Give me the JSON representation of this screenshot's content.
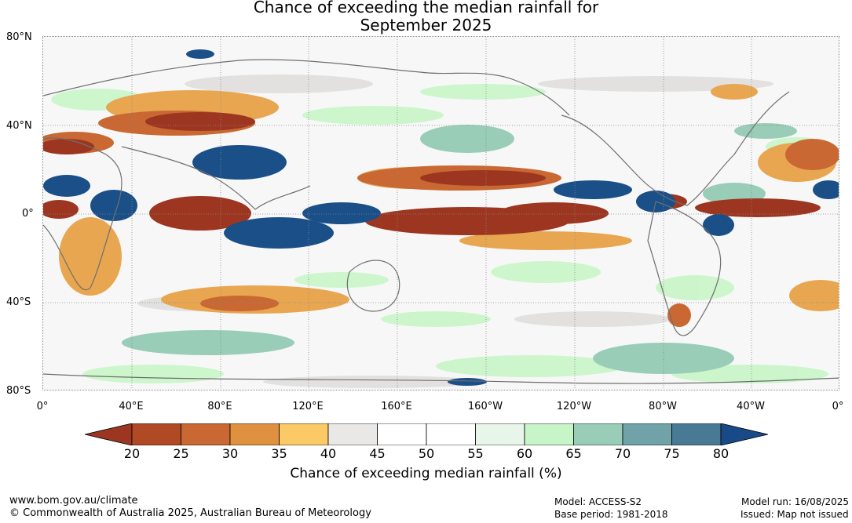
{
  "title": {
    "line1": "Chance of exceeding the median rainfall for",
    "line2": "September 2025"
  },
  "map": {
    "latitude_labels": [
      "80°N",
      "40°N",
      "0°",
      "40°S",
      "80°S"
    ],
    "longitude_labels": [
      "0°",
      "40°E",
      "80°E",
      "120°E",
      "160°E",
      "160°W",
      "120°W",
      "80°W",
      "40°W",
      "0°"
    ],
    "colors": {
      "dry_dark": "#9c3621",
      "dry_mid": "#c96832",
      "dry_light": "#e8a650",
      "neutral_gray": "#e9e8e6",
      "wet_light": "#c8f5c8",
      "wet_mid": "#9acdbb",
      "wet_dark": "#1a4f88",
      "coast": "#6e6e6e"
    }
  },
  "colorbar": {
    "ticks": [
      "20",
      "25",
      "30",
      "35",
      "40",
      "45",
      "50",
      "55",
      "60",
      "65",
      "70",
      "75",
      "80"
    ],
    "colors": [
      "#9c3621",
      "#b04a25",
      "#c96832",
      "#e0913f",
      "#fbc965",
      "#e9e8e6",
      "#ffffff",
      "#ffffff",
      "#e8f5e9",
      "#c8f5c8",
      "#99cdb8",
      "#6fa3a8",
      "#497a95",
      "#174a87"
    ],
    "label": "Chance of exceeding median rainfall (%)"
  },
  "footer": {
    "url": "www.bom.gov.au/climate",
    "copyright": "© Commonwealth of Australia 2025, Australian Bureau of Meteorology",
    "model": "Model: ACCESS-S2",
    "base_period": "Base period: 1981-2018",
    "model_run": "Model run: 16/08/2025",
    "issued": "Issued: Map not issued"
  }
}
